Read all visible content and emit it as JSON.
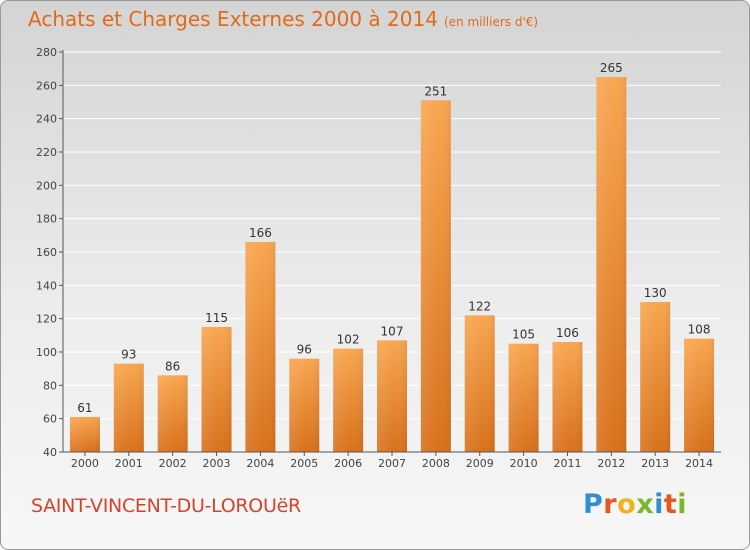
{
  "header": {
    "title": "Achats et Charges Externes 2000 à 2014",
    "subtitle": "(en milliers d'€)"
  },
  "footer": {
    "place": "SAINT-VINCENT-DU-LOROUëR",
    "logo": "Proxiti",
    "logo_colors": [
      "#2e8fd1",
      "#e8551d",
      "#f2b21b",
      "#7bb62d",
      "#2e8fd1",
      "#e8551d",
      "#7bb62d"
    ]
  },
  "chart_data": {
    "type": "bar",
    "title": "Achats et Charges Externes 2000 à 2014",
    "subtitle": "(en milliers d'€)",
    "categories": [
      "2000",
      "2001",
      "2002",
      "2003",
      "2004",
      "2005",
      "2006",
      "2007",
      "2008",
      "2009",
      "2010",
      "2011",
      "2012",
      "2013",
      "2014"
    ],
    "values": [
      61,
      93,
      86,
      115,
      166,
      96,
      102,
      107,
      251,
      122,
      105,
      106,
      265,
      130,
      108
    ],
    "ylim": [
      40,
      280
    ],
    "yticks": [
      40,
      60,
      80,
      100,
      120,
      140,
      160,
      180,
      200,
      220,
      240,
      260,
      280
    ],
    "grid": true,
    "bar_color": "#f08a2b",
    "legend": false
  }
}
